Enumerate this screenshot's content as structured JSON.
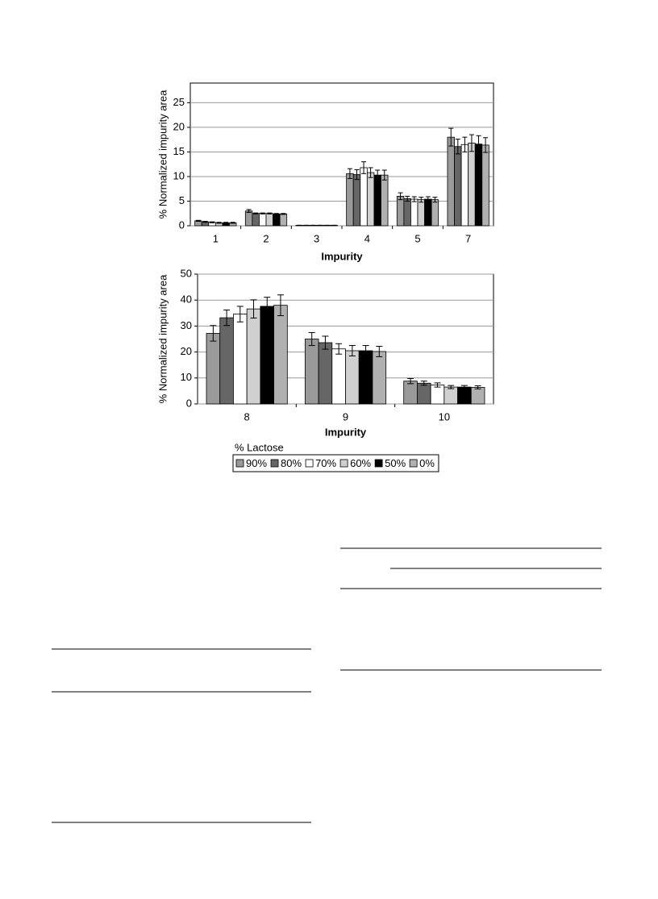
{
  "chart_data": [
    {
      "type": "bar",
      "ylabel": "% Normalized impurity area",
      "xlabel": "Impurity",
      "categories": [
        "1",
        "2",
        "3",
        "4",
        "5",
        "7"
      ],
      "ylim": [
        0,
        29
      ],
      "yticks": [
        0,
        5,
        10,
        15,
        20,
        25
      ],
      "grid": true,
      "series": [
        {
          "color": "#9a9a9a",
          "values": [
            1.0,
            3.0,
            0.1,
            10.6,
            6.0,
            18.0
          ],
          "errors": [
            0.1,
            0.3,
            0,
            1.0,
            0.7,
            1.8
          ]
        },
        {
          "color": "#666666",
          "values": [
            0.8,
            2.5,
            0.1,
            10.4,
            5.5,
            16.1
          ],
          "errors": [
            0.1,
            0.1,
            0,
            1.0,
            0.5,
            1.5
          ]
        },
        {
          "color": "#ffffff",
          "values": [
            0.7,
            2.5,
            0.1,
            11.8,
            5.4,
            16.5
          ],
          "errors": [
            0.1,
            0.1,
            0,
            1.2,
            0.5,
            1.5
          ]
        },
        {
          "color": "#d0d0d0",
          "values": [
            0.6,
            2.5,
            0.1,
            10.8,
            5.3,
            16.8
          ],
          "errors": [
            0.1,
            0.1,
            0,
            1.0,
            0.5,
            1.7
          ]
        },
        {
          "color": "#000000",
          "values": [
            0.6,
            2.4,
            0.1,
            10.3,
            5.4,
            16.6
          ],
          "errors": [
            0.1,
            0.1,
            0,
            1.0,
            0.5,
            1.7
          ]
        },
        {
          "color": "#b0b0b0",
          "values": [
            0.6,
            2.4,
            0.1,
            10.3,
            5.3,
            16.4
          ],
          "errors": [
            0.1,
            0.1,
            0,
            1.0,
            0.5,
            1.5
          ]
        }
      ]
    },
    {
      "type": "bar",
      "ylabel": "% Normalized impurity area",
      "xlabel": "Impurity",
      "categories": [
        "8",
        "9",
        "10"
      ],
      "ylim": [
        0,
        50
      ],
      "yticks": [
        0,
        10,
        20,
        30,
        40,
        50
      ],
      "grid": true,
      "legend_title": "% Lactose",
      "series": [
        {
          "name": "90%",
          "color": "#9a9a9a",
          "values": [
            27.2,
            25.0,
            8.8
          ],
          "errors": [
            3.0,
            2.5,
            1.0
          ]
        },
        {
          "name": "80%",
          "color": "#666666",
          "values": [
            33.2,
            23.6,
            8.0
          ],
          "errors": [
            3.0,
            2.5,
            0.8
          ]
        },
        {
          "name": "70%",
          "color": "#ffffff",
          "values": [
            34.6,
            21.2,
            7.3
          ],
          "errors": [
            3.0,
            2.0,
            0.8
          ]
        },
        {
          "name": "60%",
          "color": "#d0d0d0",
          "values": [
            36.6,
            20.5,
            6.5
          ],
          "errors": [
            3.5,
            2.0,
            0.6
          ]
        },
        {
          "name": "50%",
          "color": "#000000",
          "values": [
            37.6,
            20.5,
            6.5
          ],
          "errors": [
            3.5,
            2.0,
            0.6
          ]
        },
        {
          "name": "0%",
          "color": "#b0b0b0",
          "values": [
            38.0,
            20.2,
            6.4
          ],
          "errors": [
            4.0,
            2.0,
            0.6
          ]
        }
      ]
    }
  ]
}
